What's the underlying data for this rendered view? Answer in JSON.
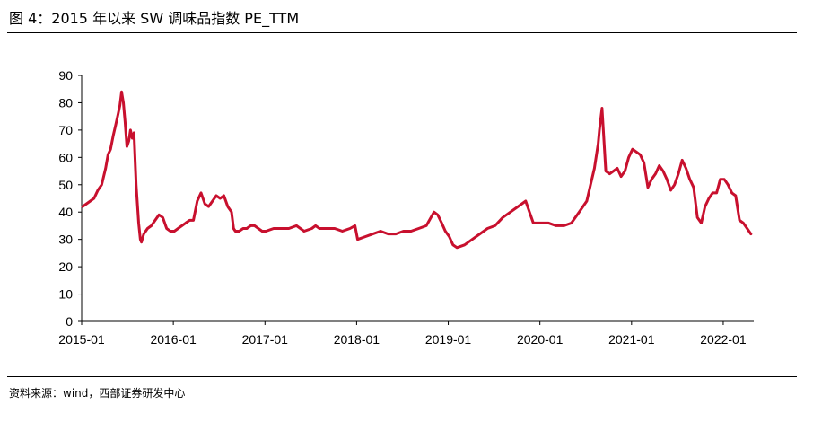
{
  "figure": {
    "title": "图 4：2015 年以来 SW 调味品指数 PE_TTM",
    "source": "资料来源：wind，西部证券研发中心"
  },
  "colors": {
    "line": "#c8102e",
    "axis": "#000000"
  },
  "chart_data": {
    "type": "line",
    "title": "",
    "xlabel": "",
    "ylabel": "",
    "ylim": [
      0,
      90
    ],
    "yticks": [
      0,
      10,
      20,
      30,
      40,
      50,
      60,
      70,
      80,
      90
    ],
    "xlim": [
      "2015-01",
      "2022-05"
    ],
    "xticks": [
      "2015-01",
      "2016-01",
      "2017-01",
      "2018-01",
      "2019-01",
      "2020-01",
      "2021-01",
      "2022-01"
    ],
    "grid": false,
    "legend": "none",
    "series": [
      {
        "x": [
          "2015-01-05",
          "2015-01-20",
          "2015-02-05",
          "2015-02-20",
          "2015-03-05",
          "2015-03-20",
          "2015-04-05",
          "2015-04-15",
          "2015-04-25",
          "2015-05-05",
          "2015-05-15",
          "2015-05-25",
          "2015-06-01",
          "2015-06-08",
          "2015-06-15",
          "2015-06-22",
          "2015-06-29",
          "2015-07-06",
          "2015-07-13",
          "2015-07-20",
          "2015-07-27",
          "2015-08-05",
          "2015-08-15",
          "2015-08-22",
          "2015-08-26",
          "2015-09-05",
          "2015-09-20",
          "2015-10-05",
          "2015-10-20",
          "2015-11-05",
          "2015-11-20",
          "2015-12-05",
          "2015-12-20",
          "2016-01-05",
          "2016-01-20",
          "2016-02-05",
          "2016-02-20",
          "2016-03-05",
          "2016-03-20",
          "2016-04-05",
          "2016-04-20",
          "2016-05-05",
          "2016-05-20",
          "2016-06-05",
          "2016-06-20",
          "2016-07-05",
          "2016-07-20",
          "2016-08-05",
          "2016-08-20",
          "2016-08-28",
          "2016-09-05",
          "2016-09-20",
          "2016-10-05",
          "2016-10-20",
          "2016-11-05",
          "2016-11-20",
          "2016-12-05",
          "2016-12-20",
          "2017-01-05",
          "2017-02-05",
          "2017-03-05",
          "2017-04-05",
          "2017-05-05",
          "2017-06-05",
          "2017-07-05",
          "2017-07-20",
          "2017-08-05",
          "2017-09-05",
          "2017-10-05",
          "2017-11-05",
          "2017-12-05",
          "2017-12-25",
          "2018-01-05",
          "2018-02-05",
          "2018-03-05",
          "2018-04-05",
          "2018-05-05",
          "2018-06-05",
          "2018-07-05",
          "2018-08-05",
          "2018-09-05",
          "2018-10-05",
          "2018-11-05",
          "2018-11-20",
          "2018-12-05",
          "2018-12-20",
          "2019-01-05",
          "2019-01-20",
          "2019-02-05",
          "2019-03-05",
          "2019-04-05",
          "2019-05-05",
          "2019-06-05",
          "2019-07-05",
          "2019-08-05",
          "2019-09-05",
          "2019-10-05",
          "2019-11-05",
          "2019-12-05",
          "2020-01-05",
          "2020-01-20",
          "2020-02-05",
          "2020-03-05",
          "2020-04-05",
          "2020-05-05",
          "2020-06-05",
          "2020-07-05",
          "2020-07-20",
          "2020-08-05",
          "2020-08-15",
          "2020-08-20",
          "2020-08-25",
          "2020-09-05",
          "2020-09-20",
          "2020-10-05",
          "2020-10-20",
          "2020-11-05",
          "2020-11-20",
          "2020-12-05",
          "2020-12-20",
          "2021-01-05",
          "2021-01-20",
          "2021-02-05",
          "2021-02-20",
          "2021-03-05",
          "2021-03-20",
          "2021-04-05",
          "2021-04-20",
          "2021-05-05",
          "2021-05-20",
          "2021-06-05",
          "2021-06-20",
          "2021-07-05",
          "2021-07-20",
          "2021-08-05",
          "2021-08-20",
          "2021-09-05",
          "2021-09-20",
          "2021-10-05",
          "2021-10-20",
          "2021-11-05",
          "2021-11-20",
          "2021-12-05",
          "2021-12-20",
          "2022-01-05",
          "2022-01-20",
          "2022-02-05",
          "2022-02-20",
          "2022-03-05",
          "2022-03-20",
          "2022-04-05",
          "2022-04-20"
        ],
        "values": [
          42,
          43,
          44,
          45,
          48,
          50,
          56,
          61,
          63,
          68,
          72,
          76,
          79,
          84,
          80,
          73,
          64,
          66,
          70,
          67,
          69,
          50,
          36,
          30,
          29,
          32,
          34,
          35,
          37,
          39,
          38,
          34,
          33,
          33,
          34,
          35,
          36,
          37,
          37,
          44,
          47,
          43,
          42,
          44,
          46,
          45,
          46,
          42,
          40,
          34,
          33,
          33,
          34,
          34,
          35,
          35,
          34,
          33,
          33,
          34,
          34,
          34,
          35,
          33,
          34,
          35,
          34,
          34,
          34,
          33,
          34,
          35,
          30,
          31,
          32,
          33,
          32,
          32,
          33,
          33,
          34,
          35,
          40,
          39,
          36,
          33,
          31,
          28,
          27,
          28,
          30,
          32,
          34,
          35,
          38,
          40,
          42,
          44,
          36,
          36,
          36,
          36,
          35,
          35,
          36,
          40,
          44,
          50,
          56,
          62,
          65,
          70,
          78,
          55,
          54,
          55,
          56,
          53,
          55,
          60,
          63,
          62,
          61,
          58,
          49,
          52,
          54,
          57,
          55,
          52,
          48,
          50,
          54,
          59,
          56,
          52,
          49,
          38,
          36,
          42,
          45,
          47,
          47,
          52,
          52,
          50,
          47,
          46,
          37,
          36,
          34,
          32
        ]
      }
    ]
  }
}
